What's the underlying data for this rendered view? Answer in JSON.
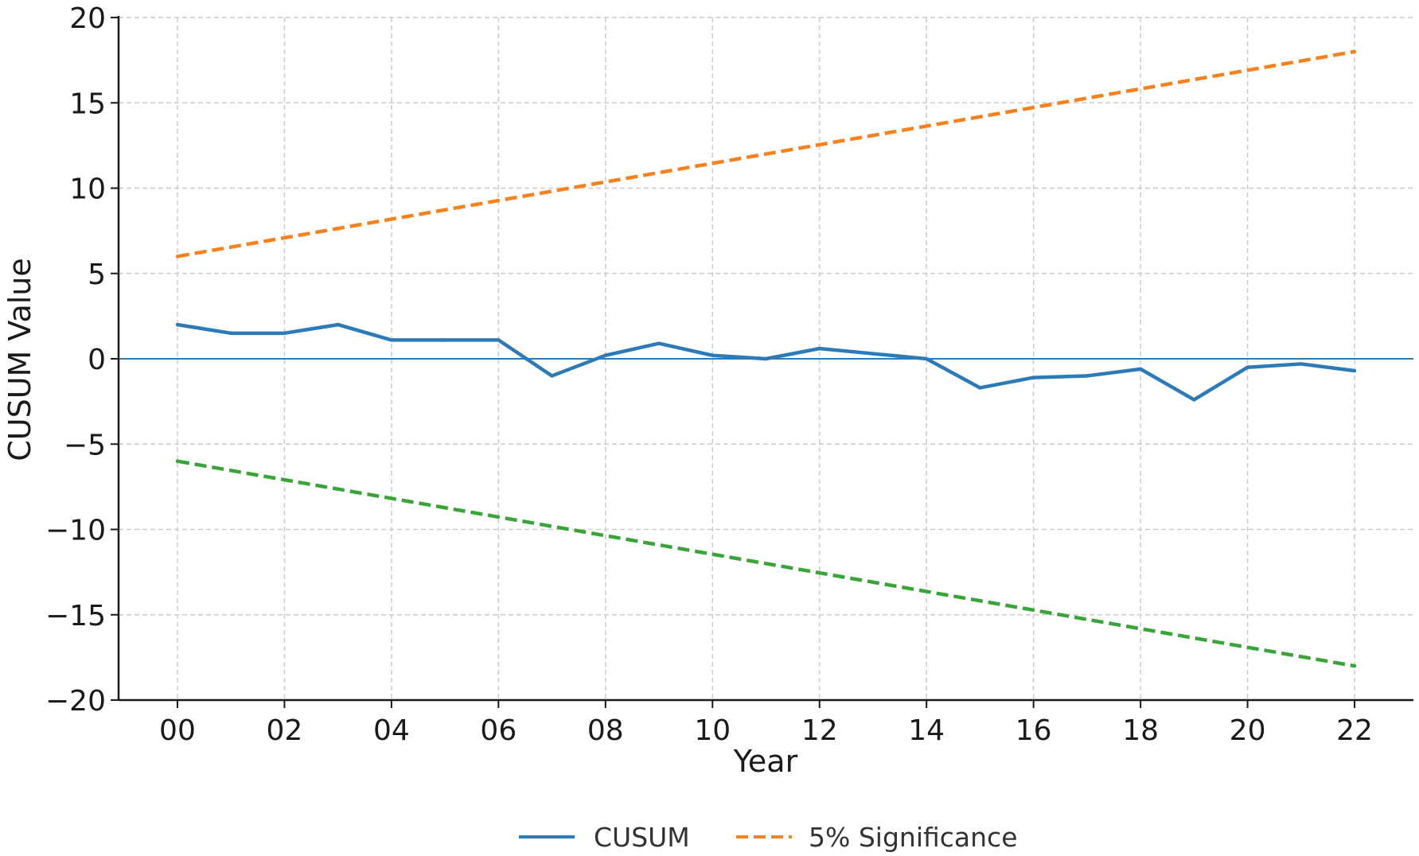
{
  "chart_data": {
    "type": "line",
    "title": "",
    "xlabel": "Year",
    "ylabel": "CUSUM Value",
    "x": [
      0,
      1,
      2,
      3,
      4,
      5,
      6,
      7,
      8,
      9,
      10,
      11,
      12,
      13,
      14,
      15,
      16,
      17,
      18,
      19,
      20,
      21,
      22
    ],
    "xticks": [
      0,
      2,
      4,
      6,
      8,
      10,
      12,
      14,
      16,
      18,
      20,
      22
    ],
    "xtick_labels": [
      "00",
      "02",
      "04",
      "06",
      "08",
      "10",
      "12",
      "14",
      "16",
      "18",
      "20",
      "22"
    ],
    "xlim": [
      -1.1,
      23.1
    ],
    "ylim": [
      -20,
      20
    ],
    "yticks": [
      -20,
      -15,
      -10,
      -5,
      0,
      5,
      10,
      15,
      20
    ],
    "ytick_labels": [
      "−20",
      "−15",
      "−10",
      "−5",
      "0",
      "5",
      "10",
      "15",
      "20"
    ],
    "grid": true,
    "zero_line": true,
    "legend_position": "bottom-center",
    "series": [
      {
        "name": "CUSUM",
        "style": "solid",
        "color": "#2e7ab6",
        "values": [
          2.0,
          1.5,
          1.5,
          2.0,
          1.1,
          1.1,
          1.1,
          -1.0,
          0.2,
          0.9,
          0.2,
          0.0,
          0.6,
          0.3,
          0.0,
          -1.7,
          -1.1,
          -1.0,
          -0.6,
          -2.4,
          -0.5,
          -0.3,
          -0.7
        ]
      },
      {
        "name": "5% Significance",
        "style": "dashed",
        "color": "#f5821f",
        "x": [
          0,
          22
        ],
        "values": [
          6.0,
          18.0
        ]
      },
      {
        "name": "",
        "style": "dashed",
        "color": "#3aa33a",
        "x": [
          0,
          22
        ],
        "values": [
          -6.0,
          -18.0
        ]
      }
    ],
    "legend": [
      {
        "label": "CUSUM",
        "style": "solid",
        "color": "#2e7ab6"
      },
      {
        "label": "5% Significance",
        "style": "dashed",
        "color": "#f5821f"
      }
    ]
  }
}
